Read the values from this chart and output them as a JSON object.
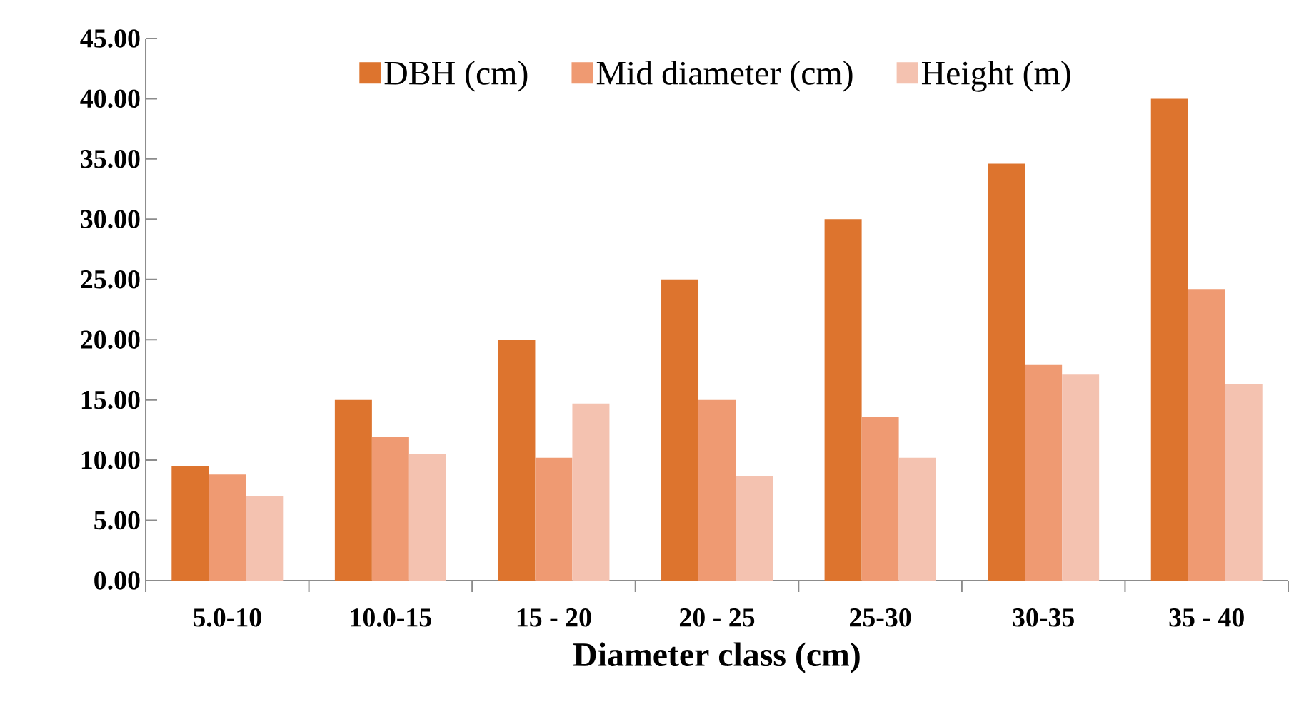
{
  "chart_data": {
    "type": "bar",
    "xlabel": "Diameter class (cm)",
    "categories": [
      "5.0-10",
      "10.0-15",
      "15 - 20",
      "20 - 25",
      "25-30",
      "30-35",
      "35 - 40"
    ],
    "series": [
      {
        "name": "DBH (cm)",
        "color": "#dd742e",
        "values": [
          9.5,
          15.0,
          20.0,
          25.0,
          30.0,
          34.6,
          40.0
        ]
      },
      {
        "name": "Mid diameter (cm)",
        "color": "#ef9a72",
        "values": [
          8.8,
          11.9,
          10.2,
          15.0,
          13.6,
          17.9,
          24.2
        ]
      },
      {
        "name": "Height (m)",
        "color": "#f4c2b0",
        "values": [
          7.0,
          10.5,
          14.7,
          8.7,
          10.2,
          17.1,
          16.3
        ]
      }
    ],
    "ylim": [
      0,
      45
    ],
    "yticks": [
      {
        "value": 0,
        "label": "0.00"
      },
      {
        "value": 5,
        "label": "5.00"
      },
      {
        "value": 10,
        "label": "10.00"
      },
      {
        "value": 15,
        "label": "15.00"
      },
      {
        "value": 20,
        "label": "20.00"
      },
      {
        "value": 25,
        "label": "25.00"
      },
      {
        "value": 30,
        "label": "30.00"
      },
      {
        "value": 35,
        "label": "35.00"
      },
      {
        "value": 40,
        "label": "40.00"
      },
      {
        "value": 45,
        "label": "45.00"
      }
    ],
    "grid": false,
    "legend": "top"
  }
}
